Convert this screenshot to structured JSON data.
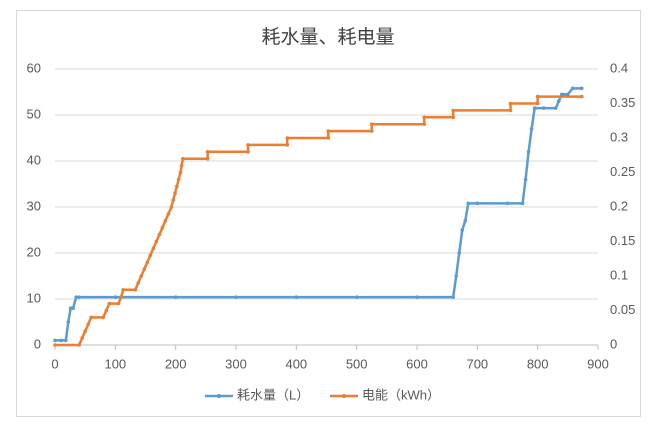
{
  "chart_data": {
    "type": "line",
    "title": "耗水量、耗电量",
    "xlim": [
      0,
      900
    ],
    "xticks": [
      0,
      100,
      200,
      300,
      400,
      500,
      600,
      700,
      800,
      900
    ],
    "ylim": [
      0,
      60
    ],
    "yticks": [
      0,
      10,
      20,
      30,
      40,
      50,
      60
    ],
    "y2lim": [
      0,
      0.4
    ],
    "y2ticks": [
      0,
      0.05,
      0.1,
      0.15,
      0.2,
      0.25,
      0.3,
      0.35,
      0.4
    ],
    "grid": true,
    "legend": "bottom",
    "series": [
      {
        "name": "耗水量（L）",
        "color": "#5b9bd5",
        "axis": "y",
        "x": [
          0,
          10,
          18,
          22,
          26,
          30,
          35,
          40,
          100,
          200,
          300,
          400,
          500,
          600,
          660,
          665,
          670,
          675,
          680,
          685,
          700,
          750,
          775,
          780,
          785,
          790,
          795,
          810,
          830,
          835,
          840,
          850,
          858,
          873
        ],
        "values": [
          1,
          1,
          1,
          5,
          8,
          8,
          10.4,
          10.4,
          10.4,
          10.4,
          10.4,
          10.4,
          10.4,
          10.4,
          10.4,
          15,
          20,
          25,
          27,
          30.8,
          30.8,
          30.8,
          30.8,
          36,
          42,
          47,
          51.5,
          51.5,
          51.5,
          53,
          54.5,
          54.5,
          55.8,
          55.8
        ]
      },
      {
        "name": "电能（kWh）",
        "color": "#ed7d31",
        "axis": "y2",
        "x": [
          0,
          40,
          45,
          50,
          55,
          60,
          80,
          85,
          90,
          105,
          110,
          113,
          133,
          138,
          143,
          148,
          153,
          158,
          163,
          168,
          173,
          178,
          183,
          188,
          193,
          196,
          199,
          202,
          205,
          208,
          210,
          212,
          253,
          253,
          320,
          320,
          385,
          385,
          453,
          453,
          525,
          525,
          612,
          612,
          660,
          660,
          755,
          755,
          800,
          800,
          873
        ],
        "values": [
          0,
          0,
          0.01,
          0.02,
          0.03,
          0.04,
          0.04,
          0.05,
          0.06,
          0.06,
          0.07,
          0.08,
          0.08,
          0.09,
          0.1,
          0.11,
          0.12,
          0.13,
          0.14,
          0.15,
          0.16,
          0.17,
          0.18,
          0.19,
          0.2,
          0.21,
          0.22,
          0.23,
          0.24,
          0.25,
          0.26,
          0.27,
          0.27,
          0.28,
          0.28,
          0.29,
          0.29,
          0.3,
          0.3,
          0.31,
          0.31,
          0.32,
          0.32,
          0.33,
          0.33,
          0.34,
          0.34,
          0.35,
          0.35,
          0.36,
          0.36
        ]
      }
    ]
  }
}
